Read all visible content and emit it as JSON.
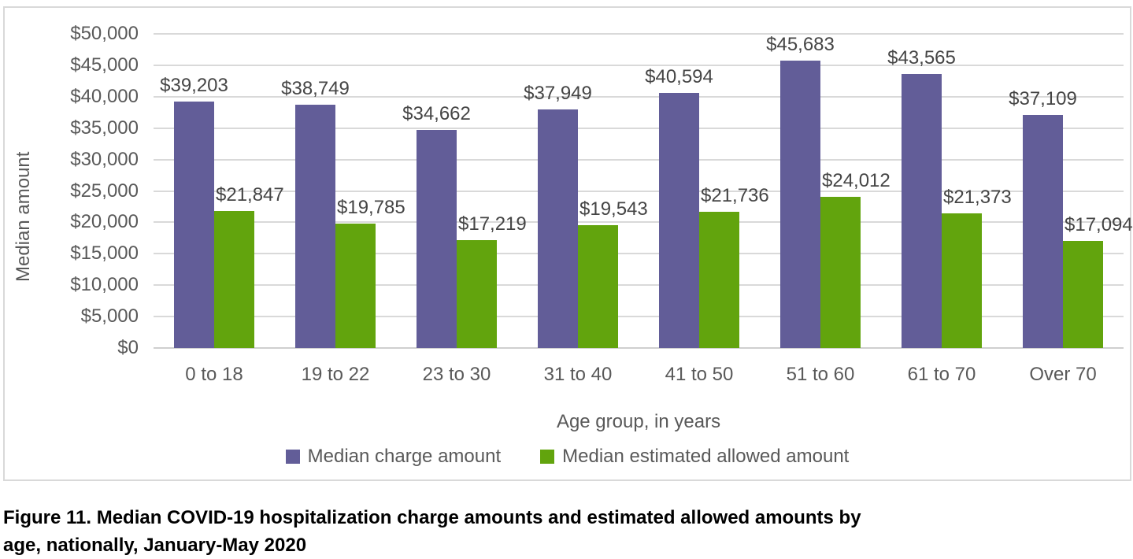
{
  "figure": {
    "caption_line1": "Figure 11. Median COVID-19 hospitalization charge amounts and estimated allowed amounts by",
    "caption_line2": "age, nationally, January-May 2020"
  },
  "chart_data": {
    "type": "bar",
    "title": "",
    "xlabel": "Age group, in years",
    "ylabel": "Median amount",
    "categories": [
      "0 to 18",
      "19 to 22",
      "23 to 30",
      "31 to 40",
      "41 to 50",
      "51 to 60",
      "61 to 70",
      "Over 70"
    ],
    "series": [
      {
        "name": "Median charge amount",
        "color": "#625D98",
        "values": [
          39203,
          38749,
          34662,
          37949,
          40594,
          45683,
          43565,
          37109
        ],
        "labels": [
          "$39,203",
          "$38,749",
          "$34,662",
          "$37,949",
          "$40,594",
          "$45,683",
          "$43,565",
          "$37,109"
        ]
      },
      {
        "name": "Median estimated allowed amount",
        "color": "#62A40D",
        "values": [
          21847,
          19785,
          17219,
          19543,
          21736,
          24012,
          21373,
          17094
        ],
        "labels": [
          "$21,847",
          "$19,785",
          "$17,219",
          "$19,543",
          "$21,736",
          "$24,012",
          "$21,373",
          "$17,094"
        ]
      }
    ],
    "ylim": [
      0,
      50000
    ],
    "y_tick_step": 5000,
    "y_tick_labels": [
      "$0",
      "$5,000",
      "$10,000",
      "$15,000",
      "$20,000",
      "$25,000",
      "$30,000",
      "$35,000",
      "$40,000",
      "$45,000",
      "$50,000"
    ],
    "grid": "horizontal",
    "legend_position": "bottom",
    "colors": {
      "gridline": "#D9D9D9",
      "card_border": "#D9D9D9",
      "axis_text": "#595959",
      "data_label_text": "#454545"
    }
  }
}
